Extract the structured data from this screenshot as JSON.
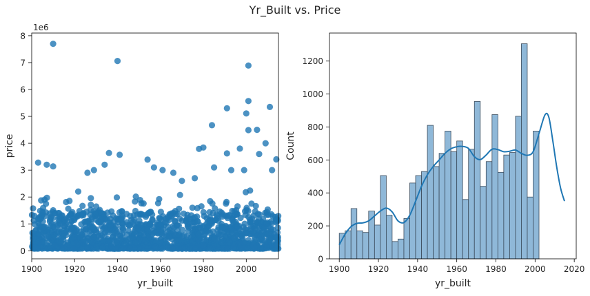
{
  "suptitle": "Yr_Built vs. Price",
  "colors": {
    "scatter": "#1f77b4",
    "hist_fill": "#8fb8d8",
    "hist_edge": "#3a4a5a",
    "kde": "#1f77b4"
  },
  "chart_data": [
    {
      "type": "scatter",
      "xlabel": "yr_built",
      "ylabel": "price",
      "offset_text": "1e6",
      "xlim": [
        1900,
        2015
      ],
      "ylim": [
        -0.3,
        8.1
      ],
      "xticks": [
        1900,
        1920,
        1940,
        1960,
        1980,
        2000
      ],
      "yticks": [
        0,
        1,
        2,
        3,
        4,
        5,
        6,
        7,
        8
      ],
      "y_unit_note": "values in millions (1e6)",
      "points_outliers": [
        [
          1910,
          7.7
        ],
        [
          1940,
          7.06
        ],
        [
          2001,
          6.89
        ],
        [
          2001,
          5.57
        ],
        [
          2011,
          5.35
        ],
        [
          1991,
          5.3
        ],
        [
          2000,
          5.11
        ],
        [
          2005,
          4.5
        ],
        [
          2001,
          4.49
        ],
        [
          2009,
          4.0
        ],
        [
          1984,
          4.67
        ],
        [
          1978,
          3.79
        ],
        [
          1980,
          3.84
        ],
        [
          1936,
          3.64
        ],
        [
          1941,
          3.57
        ],
        [
          1903,
          3.28
        ],
        [
          1954,
          3.39
        ],
        [
          1907,
          3.2
        ],
        [
          1910,
          3.14
        ],
        [
          1934,
          3.2
        ],
        [
          1957,
          3.1
        ],
        [
          1991,
          3.62
        ],
        [
          1997,
          3.8
        ],
        [
          2006,
          3.6
        ],
        [
          2014,
          3.4
        ],
        [
          2012,
          3.0
        ],
        [
          1999,
          3.0
        ],
        [
          1993,
          3.0
        ],
        [
          1985,
          3.1
        ],
        [
          1961,
          3.0
        ],
        [
          1966,
          2.9
        ],
        [
          1970,
          2.6
        ],
        [
          1976,
          2.7
        ],
        [
          1926,
          2.9
        ],
        [
          1929,
          3.0
        ]
      ]
    },
    {
      "type": "bar",
      "xlabel": "yr_built",
      "ylabel": "Count",
      "xlim": [
        1895,
        2021
      ],
      "ylim": [
        0,
        1370
      ],
      "xticks": [
        1900,
        1920,
        1940,
        1960,
        1980,
        2000,
        2020
      ],
      "yticks": [
        0,
        200,
        400,
        600,
        800,
        1000,
        1200
      ],
      "bin_start": 1900,
      "bin_width": 3.0,
      "values": [
        155,
        170,
        305,
        170,
        160,
        290,
        205,
        505,
        265,
        105,
        120,
        245,
        460,
        505,
        530,
        810,
        560,
        640,
        775,
        650,
        715,
        360,
        665,
        955,
        440,
        590,
        875,
        525,
        630,
        645,
        865,
        1305,
        375,
        775
      ],
      "kde": [
        [
          1900,
          85
        ],
        [
          1903,
          150
        ],
        [
          1906,
          195
        ],
        [
          1909,
          215
        ],
        [
          1912,
          218
        ],
        [
          1915,
          230
        ],
        [
          1918,
          260
        ],
        [
          1921,
          290
        ],
        [
          1924,
          308
        ],
        [
          1927,
          285
        ],
        [
          1930,
          230
        ],
        [
          1933,
          220
        ],
        [
          1936,
          265
        ],
        [
          1939,
          350
        ],
        [
          1942,
          440
        ],
        [
          1945,
          510
        ],
        [
          1948,
          560
        ],
        [
          1951,
          600
        ],
        [
          1954,
          640
        ],
        [
          1957,
          668
        ],
        [
          1960,
          680
        ],
        [
          1963,
          682
        ],
        [
          1966,
          670
        ],
        [
          1969,
          620
        ],
        [
          1972,
          602
        ],
        [
          1975,
          630
        ],
        [
          1978,
          665
        ],
        [
          1981,
          663
        ],
        [
          1984,
          650
        ],
        [
          1987,
          653
        ],
        [
          1990,
          660
        ],
        [
          1993,
          640
        ],
        [
          1996,
          628
        ],
        [
          1999,
          650
        ],
        [
          2002,
          760
        ],
        [
          2005,
          872
        ],
        [
          2007,
          860
        ],
        [
          2009,
          720
        ],
        [
          2011,
          560
        ],
        [
          2013,
          430
        ],
        [
          2015,
          350
        ]
      ]
    }
  ]
}
